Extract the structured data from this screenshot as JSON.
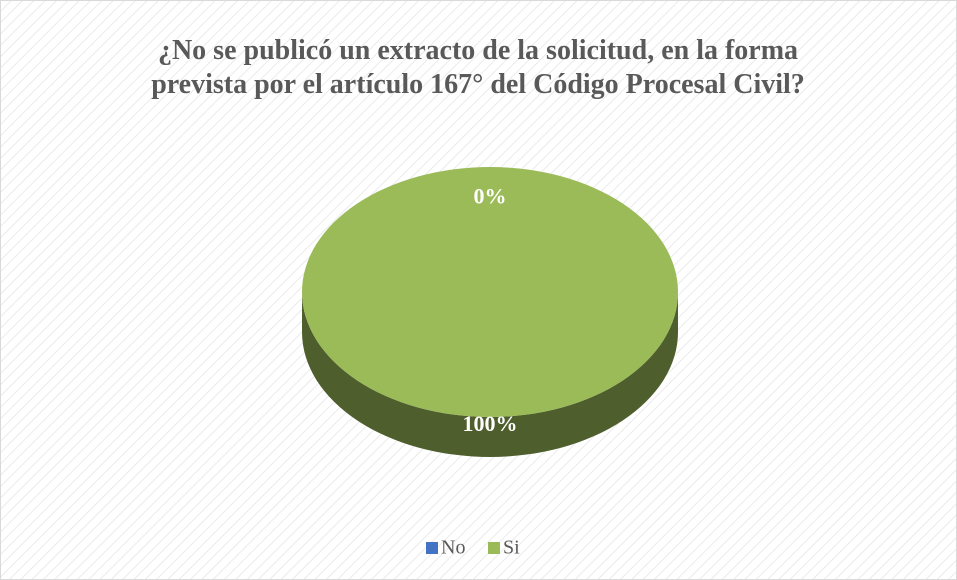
{
  "chart_data": {
    "type": "pie",
    "title": "¿No se publicó un extracto de la solicitud, en la forma prevista por el artículo 167° del Código Procesal Civil?",
    "categories": [
      "No",
      "Si"
    ],
    "values": [
      0,
      100
    ],
    "value_labels": [
      "0%",
      "100%"
    ],
    "colors": [
      "#4472c4",
      "#9bbb59"
    ],
    "legend": "bottom"
  }
}
